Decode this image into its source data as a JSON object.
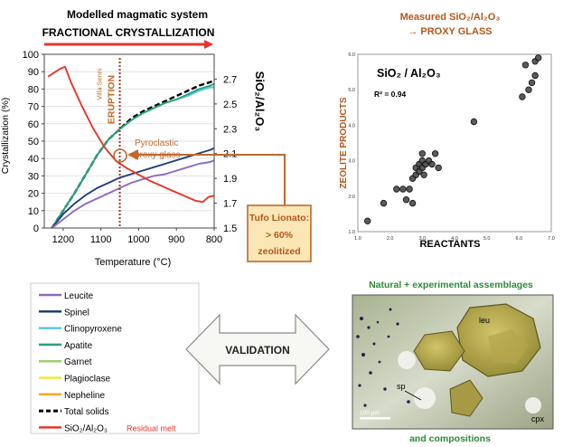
{
  "left_header": {
    "title": "Modelled magmatic system",
    "subtitle": "FRACTIONAL CRYSTALLIZATION"
  },
  "right_header": {
    "line1": "Measured SiO₂/Al₂O₃",
    "line2": "→ PROXY GLASS"
  },
  "callout": {
    "line1": "Tufo Lionato:",
    "line2": "> 60%",
    "line3": "zeolitized"
  },
  "validation_label": "VALIDATION",
  "natural_assemblages": {
    "caption_top": "Natural + experimental assemblages",
    "caption_bottom": "and compositions",
    "labels": {
      "leu": "leu",
      "sp": "sp",
      "cpx": "cpx"
    },
    "scale_bar": "100 µm"
  },
  "legend": {
    "items": [
      {
        "label": "Leucite",
        "color": "#8c6bbf",
        "dashed": false,
        "note": ""
      },
      {
        "label": "Spinel",
        "color": "#1f3f7a",
        "dashed": false,
        "note": ""
      },
      {
        "label": "Clinopyroxene",
        "color": "#5bc8e8",
        "dashed": false,
        "note": ""
      },
      {
        "label": "Apatite",
        "color": "#27a27a",
        "dashed": false,
        "note": ""
      },
      {
        "label": "Garnet",
        "color": "#9fd06a",
        "dashed": false,
        "note": ""
      },
      {
        "label": "Plagioclase",
        "color": "#f0e83a",
        "dashed": false,
        "note": ""
      },
      {
        "label": "Nepheline",
        "color": "#f3a92b",
        "dashed": false,
        "note": ""
      },
      {
        "label": "Total solids",
        "color": "#000000",
        "dashed": true,
        "note": ""
      },
      {
        "label": "SiO₂/Al₂O₃",
        "color": "#e8352a",
        "dashed": false,
        "note": "Residual melt"
      }
    ]
  },
  "chart_data": [
    {
      "type": "line",
      "title": "",
      "xlabel": "Temperature (°C)",
      "ylabel": "Crystallization (%)",
      "y2label": "SiO₂/Al₂O₃",
      "xlim": [
        1250,
        800
      ],
      "ylim": [
        0,
        100
      ],
      "y2lim": [
        1.5,
        2.9
      ],
      "xticks": [
        1200,
        1100,
        1000,
        900,
        800
      ],
      "yticks": [
        0,
        10,
        20,
        30,
        40,
        50,
        60,
        70,
        80,
        90,
        100
      ],
      "y2ticks": [
        1.5,
        1.7,
        1.9,
        2.1,
        2.3,
        2.5,
        2.7
      ],
      "annotations": {
        "eruption": "ERUPTION",
        "villa": "Villa Senni",
        "eruption_temperature": 1050,
        "proxy_glass_line1": "Pyroclastic",
        "proxy_glass_line2": "proxy glass"
      },
      "series": [
        {
          "name": "Total solids",
          "axis": "left",
          "color": "#000000",
          "dashed": true,
          "x": [
            1230,
            1200,
            1170,
            1140,
            1110,
            1080,
            1050,
            1020,
            990,
            960,
            930,
            900,
            870,
            840,
            810,
            800
          ],
          "y": [
            0,
            10,
            20,
            31,
            42,
            51,
            57,
            63,
            67,
            70,
            73,
            76,
            79,
            82,
            84,
            85
          ]
        },
        {
          "name": "Clinopyroxene",
          "axis": "left",
          "color": "#5bc8e8",
          "dashed": false,
          "x": [
            1230,
            1200,
            1170,
            1140,
            1110,
            1080,
            1050,
            1020,
            990,
            960,
            930,
            900,
            870,
            840,
            810,
            800
          ],
          "y": [
            0,
            10,
            20,
            31,
            42,
            51,
            57,
            62,
            66,
            69,
            72,
            74,
            76,
            79,
            81,
            81
          ]
        },
        {
          "name": "Apatite",
          "axis": "left",
          "color": "#27a27a",
          "dashed": false,
          "x": [
            1230,
            1200,
            1170,
            1140,
            1110,
            1080,
            1050,
            1020,
            990,
            960,
            930,
            900,
            870,
            840,
            810,
            800
          ],
          "y": [
            0,
            10,
            20,
            31,
            42,
            51,
            57,
            62,
            66,
            69,
            72,
            74,
            77,
            80,
            82,
            83
          ]
        },
        {
          "name": "Spinel",
          "axis": "left",
          "color": "#1f3f7a",
          "dashed": false,
          "x": [
            1230,
            1200,
            1170,
            1140,
            1110,
            1080,
            1050,
            1020,
            990,
            960,
            930,
            900,
            870,
            840,
            810,
            800
          ],
          "y": [
            0,
            8,
            14,
            19,
            23,
            26,
            29,
            31,
            33,
            35,
            37,
            39,
            41,
            43,
            45,
            46
          ]
        },
        {
          "name": "Leucite",
          "axis": "left",
          "color": "#8c6bbf",
          "dashed": false,
          "x": [
            1230,
            1200,
            1170,
            1140,
            1110,
            1080,
            1050,
            1020,
            990,
            960,
            930,
            900,
            870,
            840,
            810,
            800
          ],
          "y": [
            0,
            5,
            10,
            14,
            17,
            20,
            23,
            26,
            28,
            30,
            31,
            33,
            35,
            37,
            38,
            39
          ]
        },
        {
          "name": "SiO₂/Al₂O₃",
          "axis": "right",
          "color": "#e8352a",
          "dashed": false,
          "x": [
            1240,
            1210,
            1195,
            1180,
            1150,
            1120,
            1090,
            1060,
            1030,
            1000,
            970,
            940,
            910,
            880,
            850,
            830,
            815,
            800
          ],
          "y": [
            2.72,
            2.78,
            2.8,
            2.68,
            2.48,
            2.3,
            2.15,
            2.04,
            1.98,
            1.93,
            1.88,
            1.84,
            1.8,
            1.76,
            1.72,
            1.71,
            1.75,
            1.76
          ]
        }
      ]
    },
    {
      "type": "scatter",
      "title": "SiO₂ / Al₂O₃",
      "xlabel": "REACTANTS",
      "ylabel": "ZEOLITE PRODUCTS",
      "annotation": "R² = 0.94",
      "xlim": [
        1.0,
        7.0
      ],
      "ylim": [
        1.0,
        6.0
      ],
      "xticks": [
        1.0,
        2.0,
        3.0,
        4.0,
        5.0,
        6.0,
        7.0
      ],
      "yticks": [
        1.0,
        2.0,
        3.0,
        4.0,
        5.0,
        6.0
      ],
      "points": [
        [
          1.3,
          1.3
        ],
        [
          1.8,
          1.8
        ],
        [
          2.2,
          2.2
        ],
        [
          2.4,
          2.2
        ],
        [
          2.5,
          1.9
        ],
        [
          2.6,
          2.2
        ],
        [
          2.7,
          1.8
        ],
        [
          2.7,
          2.5
        ],
        [
          2.8,
          2.8
        ],
        [
          2.8,
          2.6
        ],
        [
          2.9,
          2.9
        ],
        [
          2.9,
          2.7
        ],
        [
          3.0,
          2.8
        ],
        [
          3.0,
          3.0
        ],
        [
          3.0,
          3.2
        ],
        [
          3.05,
          2.6
        ],
        [
          3.1,
          2.9
        ],
        [
          3.2,
          3.0
        ],
        [
          3.3,
          2.9
        ],
        [
          3.4,
          3.2
        ],
        [
          3.5,
          2.8
        ],
        [
          4.6,
          4.1
        ],
        [
          6.1,
          4.8
        ],
        [
          6.2,
          5.7
        ],
        [
          6.3,
          5.0
        ],
        [
          6.4,
          5.2
        ],
        [
          6.5,
          5.4
        ],
        [
          6.5,
          5.8
        ],
        [
          6.6,
          5.9
        ]
      ]
    }
  ]
}
